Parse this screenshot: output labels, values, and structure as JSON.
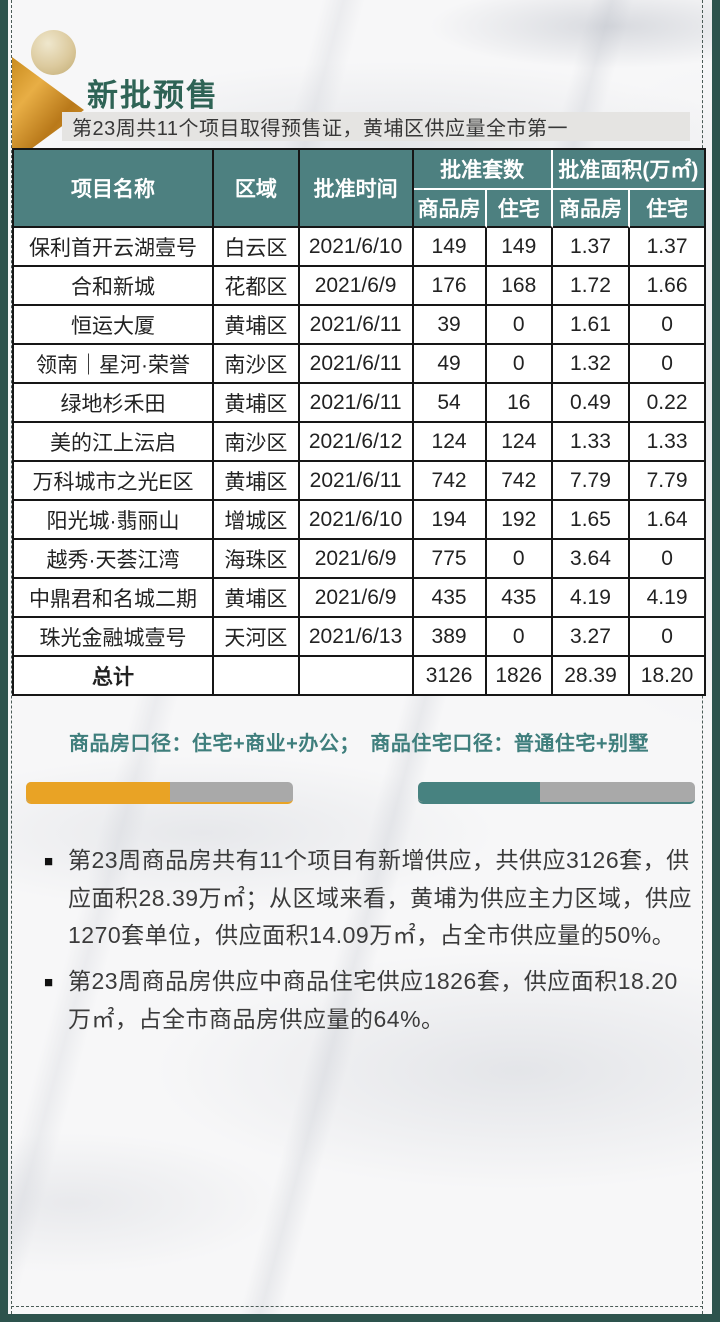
{
  "header": {
    "title": "新批预售",
    "subtitle": "第23周共11个项目取得预售证，黄埔区供应量全市第一"
  },
  "table": {
    "headers": {
      "project": "项目名称",
      "district": "区域",
      "approval_date": "批准时间",
      "units_group": "批准套数",
      "area_group": "批准面积(万㎡)",
      "sub_commodity": "商品房",
      "sub_residential": "住宅"
    },
    "rows": [
      {
        "project": "保利首开云湖壹号",
        "district": "白云区",
        "date": "2021/6/10",
        "units_commodity": "149",
        "units_residential": "149",
        "area_commodity": "1.37",
        "area_residential": "1.37"
      },
      {
        "project": "合和新城",
        "district": "花都区",
        "date": "2021/6/9",
        "units_commodity": "176",
        "units_residential": "168",
        "area_commodity": "1.72",
        "area_residential": "1.66"
      },
      {
        "project": "恒运大厦",
        "district": "黄埔区",
        "date": "2021/6/11",
        "units_commodity": "39",
        "units_residential": "0",
        "area_commodity": "1.61",
        "area_residential": "0"
      },
      {
        "project": "领南｜星河·荣誉",
        "district": "南沙区",
        "date": "2021/6/11",
        "units_commodity": "49",
        "units_residential": "0",
        "area_commodity": "1.32",
        "area_residential": "0"
      },
      {
        "project": "绿地杉禾田",
        "district": "黄埔区",
        "date": "2021/6/11",
        "units_commodity": "54",
        "units_residential": "16",
        "area_commodity": "0.49",
        "area_residential": "0.22"
      },
      {
        "project": "美的江上沄启",
        "district": "南沙区",
        "date": "2021/6/12",
        "units_commodity": "124",
        "units_residential": "124",
        "area_commodity": "1.33",
        "area_residential": "1.33"
      },
      {
        "project": "万科城市之光E区",
        "district": "黄埔区",
        "date": "2021/6/11",
        "units_commodity": "742",
        "units_residential": "742",
        "area_commodity": "7.79",
        "area_residential": "7.79"
      },
      {
        "project": "阳光城·翡丽山",
        "district": "增城区",
        "date": "2021/6/10",
        "units_commodity": "194",
        "units_residential": "192",
        "area_commodity": "1.65",
        "area_residential": "1.64"
      },
      {
        "project": "越秀·天荟江湾",
        "district": "海珠区",
        "date": "2021/6/9",
        "units_commodity": "775",
        "units_residential": "0",
        "area_commodity": "3.64",
        "area_residential": "0"
      },
      {
        "project": "中鼎君和名城二期",
        "district": "黄埔区",
        "date": "2021/6/9",
        "units_commodity": "435",
        "units_residential": "435",
        "area_commodity": "4.19",
        "area_residential": "4.19"
      },
      {
        "project": "珠光金融城壹号",
        "district": "天河区",
        "date": "2021/6/13",
        "units_commodity": "389",
        "units_residential": "0",
        "area_commodity": "3.27",
        "area_residential": "0"
      }
    ],
    "total": {
      "label": "总计",
      "units_commodity": "3126",
      "units_residential": "1826",
      "area_commodity": "28.39",
      "area_residential": "18.20"
    }
  },
  "note": "商品房口径：住宅+商业+办公；　商品住宅口径：普通住宅+别墅",
  "bars": {
    "left": {
      "color": "#e9a325",
      "fill_pct": 54
    },
    "right": {
      "color": "#478280",
      "fill_pct": 44
    },
    "track_color": "#a9a9a9"
  },
  "bullets": {
    "marker": "■",
    "items": [
      "第23周商品房共有11个项目有新增供应，共供应3126套，供应面积28.39万㎡；从区域来看，黄埔为供应主力区域，供应1270套单位，供应面积14.09万㎡，占全市供应量的50%。",
      "第23周商品房供应中商品住宅供应1826套，供应面积18.20万㎡，占全市商品房供应量的64%。"
    ]
  },
  "colors": {
    "frame_teal": "#2d534d",
    "header_teal": "#4d8080",
    "title_green": "#2e6355",
    "note_teal": "#3e7e7c",
    "accent_orange": "#e9a325",
    "accent_bar_teal": "#478280",
    "accent_gray": "#a9a9a9"
  }
}
